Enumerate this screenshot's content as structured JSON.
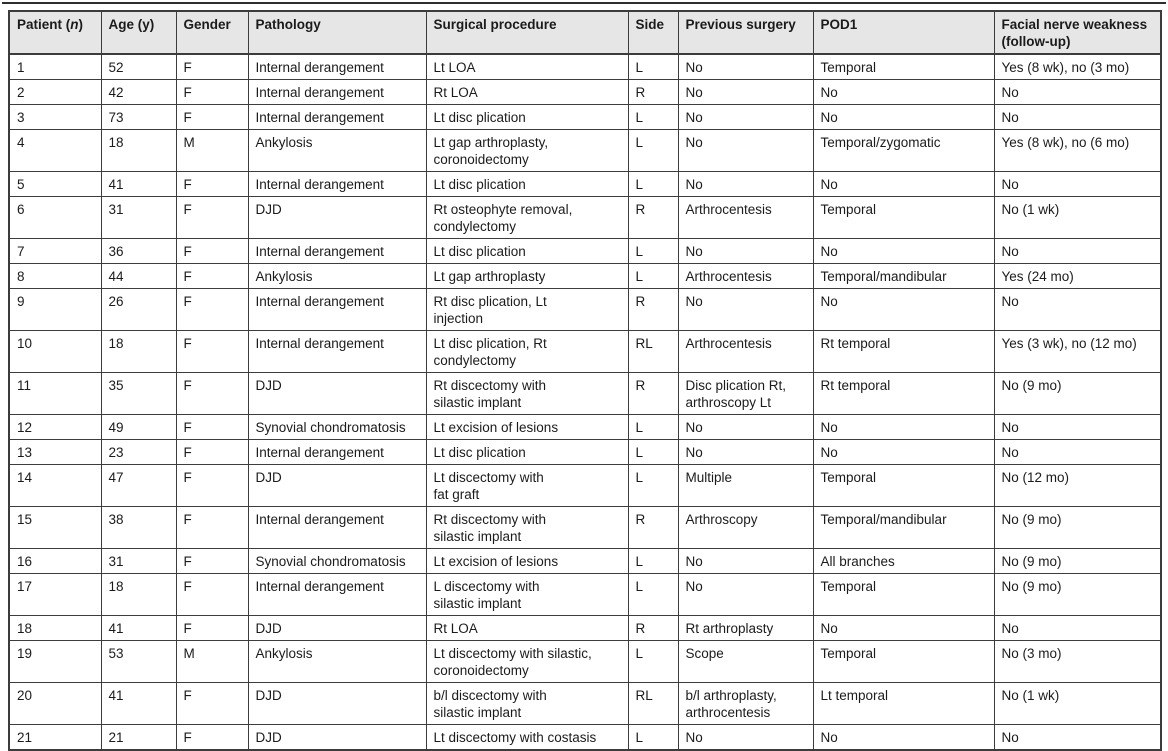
{
  "colors": {
    "header_bg": "#e6e6e6",
    "border": "#3c3c3c",
    "text": "#1b1b1b"
  },
  "table": {
    "header": {
      "patient_prefix": "Patient (",
      "patient_italic": "n",
      "patient_suffix": ")",
      "age": "Age (y)",
      "gender": "Gender",
      "pathology": "Pathology",
      "surgical": "Surgical procedure",
      "side": "Side",
      "previous": "Previous surgery",
      "pod1": "POD1",
      "facial": "Facial nerve weakness\n(follow-up)"
    },
    "rows": [
      [
        "1",
        "52",
        "F",
        "Internal derangement",
        "Lt LOA",
        "L",
        "No",
        "Temporal",
        "Yes (8 wk), no (3 mo)"
      ],
      [
        "2",
        "42",
        "F",
        "Internal derangement",
        "Rt LOA",
        "R",
        "No",
        "No",
        "No"
      ],
      [
        "3",
        "73",
        "F",
        "Internal derangement",
        "Lt disc plication",
        "L",
        "No",
        "No",
        "No"
      ],
      [
        "4",
        "18",
        "M",
        "Ankylosis",
        "Lt gap arthroplasty,\ncoronoidectomy",
        "L",
        "No",
        "Temporal/zygomatic",
        "Yes (8 wk), no (6 mo)"
      ],
      [
        "5",
        "41",
        "F",
        "Internal derangement",
        "Lt disc plication",
        "L",
        "No",
        "No",
        "No"
      ],
      [
        "6",
        "31",
        "F",
        "DJD",
        "Rt osteophyte removal,\ncondylectomy",
        "R",
        "Arthrocentesis",
        "Temporal",
        "No (1 wk)"
      ],
      [
        "7",
        "36",
        "F",
        "Internal derangement",
        "Lt disc plication",
        "L",
        "No",
        "No",
        "No"
      ],
      [
        "8",
        "44",
        "F",
        "Ankylosis",
        "Lt gap arthroplasty",
        "L",
        "Arthrocentesis",
        "Temporal/mandibular",
        "Yes (24 mo)"
      ],
      [
        "9",
        "26",
        "F",
        "Internal derangement",
        "Rt disc plication, Lt\ninjection",
        "R",
        "No",
        "No",
        "No"
      ],
      [
        "10",
        "18",
        "F",
        "Internal derangement",
        "Lt disc plication, Rt\ncondylectomy",
        "RL",
        "Arthrocentesis",
        "Rt temporal",
        "Yes (3 wk), no (12 mo)"
      ],
      [
        "11",
        "35",
        "F",
        "DJD",
        "Rt discectomy with\nsilastic implant",
        "R",
        "Disc plication Rt,\narthroscopy Lt",
        "Rt temporal",
        "No (9 mo)"
      ],
      [
        "12",
        "49",
        "F",
        "Synovial chondromatosis",
        "Lt excision of lesions",
        "L",
        "No",
        "No",
        "No"
      ],
      [
        "13",
        "23",
        "F",
        "Internal derangement",
        "Lt disc plication",
        "L",
        "No",
        "No",
        "No"
      ],
      [
        "14",
        "47",
        "F",
        "DJD",
        "Lt discectomy with\nfat graft",
        "L",
        "Multiple",
        "Temporal",
        "No (12 mo)"
      ],
      [
        "15",
        "38",
        "F",
        "Internal derangement",
        "Rt discectomy with\nsilastic implant",
        "R",
        "Arthroscopy",
        "Temporal/mandibular",
        "No (9 mo)"
      ],
      [
        "16",
        "31",
        "F",
        "Synovial chondromatosis",
        "Lt excision of lesions",
        "L",
        "No",
        "All branches",
        "No (9 mo)"
      ],
      [
        "17",
        "18",
        "F",
        "Internal derangement",
        "L discectomy with\nsilastic implant",
        "L",
        "No",
        "Temporal",
        "No (9 mo)"
      ],
      [
        "18",
        "41",
        "F",
        "DJD",
        "Rt LOA",
        "R",
        "Rt arthroplasty",
        "No",
        "No"
      ],
      [
        "19",
        "53",
        "M",
        "Ankylosis",
        "Lt discectomy with silastic,\ncoronoidectomy",
        "L",
        "Scope",
        "Temporal",
        "No (3 mo)"
      ],
      [
        "20",
        "41",
        "F",
        "DJD",
        "b/l discectomy with\nsilastic implant",
        "RL",
        "b/l arthroplasty,\narthrocentesis",
        "Lt temporal",
        "No (1 wk)"
      ],
      [
        "21",
        "21",
        "F",
        "DJD",
        "Lt discectomy with costasis",
        "L",
        "No",
        "No",
        "No"
      ]
    ]
  }
}
